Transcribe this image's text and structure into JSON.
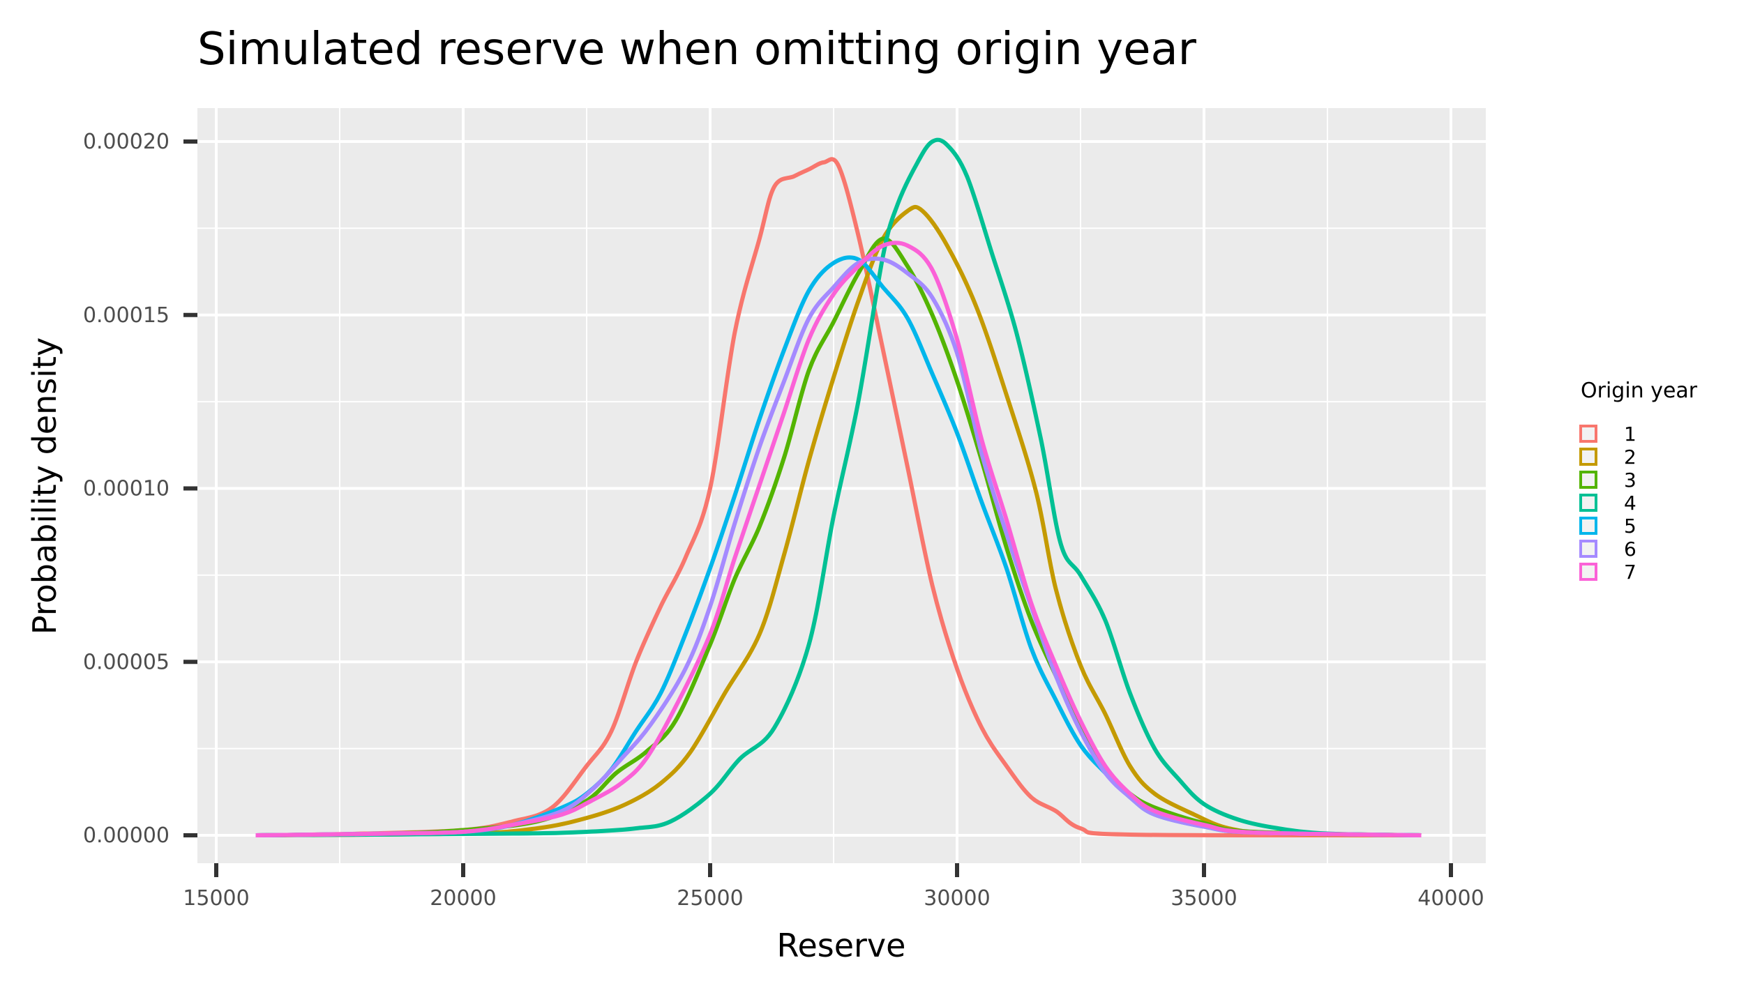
{
  "chart_data": {
    "type": "line",
    "title": "Simulated reserve when omitting origin year",
    "xlabel": "Reserve",
    "ylabel": "Probability density",
    "xlim": [
      15000,
      40000
    ],
    "ylim": [
      0,
      0.0002
    ],
    "x_ticks": [
      {
        "value": 15000,
        "label": "15000"
      },
      {
        "value": 20000,
        "label": "20000"
      },
      {
        "value": 25000,
        "label": "25000"
      },
      {
        "value": 30000,
        "label": "30000"
      },
      {
        "value": 35000,
        "label": "35000"
      },
      {
        "value": 40000,
        "label": "40000"
      }
    ],
    "y_ticks": [
      {
        "value": 0,
        "label": "0.00000"
      },
      {
        "value": 5e-05,
        "label": "0.00005"
      },
      {
        "value": 0.0001,
        "label": "0.00010"
      },
      {
        "value": 0.00015,
        "label": "0.00015"
      },
      {
        "value": 0.0002,
        "label": "0.00020"
      }
    ],
    "grid": true,
    "legend": {
      "title": "Origin year",
      "position": "right"
    },
    "series": [
      {
        "name": "1",
        "color": "#F8766D",
        "points": [
          [
            15800,
            0
          ],
          [
            18000,
            5e-07
          ],
          [
            20000,
            1.5e-06
          ],
          [
            21000,
            4e-06
          ],
          [
            21800,
            8e-06
          ],
          [
            22500,
            2e-05
          ],
          [
            23000,
            3e-05
          ],
          [
            23500,
            5e-05
          ],
          [
            24000,
            6.6e-05
          ],
          [
            24500,
            8e-05
          ],
          [
            25000,
            0.0001
          ],
          [
            25500,
            0.000145
          ],
          [
            26000,
            0.000172
          ],
          [
            26300,
            0.000187
          ],
          [
            26700,
            0.00019
          ],
          [
            27000,
            0.000192
          ],
          [
            27300,
            0.000194
          ],
          [
            27600,
            0.000193
          ],
          [
            28000,
            0.000173
          ],
          [
            28500,
            0.00014
          ],
          [
            29000,
            0.000106
          ],
          [
            29500,
            7.2e-05
          ],
          [
            30000,
            4.8e-05
          ],
          [
            30500,
            3.1e-05
          ],
          [
            31000,
            2e-05
          ],
          [
            31500,
            1.1e-05
          ],
          [
            32000,
            7e-06
          ],
          [
            32500,
            2e-06
          ],
          [
            33500,
            2e-07
          ],
          [
            39400,
            0
          ]
        ]
      },
      {
        "name": "2",
        "color": "#C49A00",
        "points": [
          [
            15800,
            0
          ],
          [
            20000,
            5e-07
          ],
          [
            21500,
            2e-06
          ],
          [
            22500,
            5e-06
          ],
          [
            23300,
            9e-06
          ],
          [
            24000,
            1.5e-05
          ],
          [
            24600,
            2.4e-05
          ],
          [
            25300,
            4.1e-05
          ],
          [
            26000,
            5.8e-05
          ],
          [
            26500,
            8.1e-05
          ],
          [
            27000,
            0.000108
          ],
          [
            27500,
            0.000132
          ],
          [
            28000,
            0.000154
          ],
          [
            28500,
            0.000172
          ],
          [
            29000,
            0.00018
          ],
          [
            29300,
            0.00018
          ],
          [
            29800,
            0.00017
          ],
          [
            30400,
            0.000152
          ],
          [
            31000,
            0.000127
          ],
          [
            31600,
            9.9e-05
          ],
          [
            32000,
            7.1e-05
          ],
          [
            32500,
            4.9e-05
          ],
          [
            33000,
            3.5e-05
          ],
          [
            33500,
            2e-05
          ],
          [
            34000,
            1.2e-05
          ],
          [
            34800,
            6e-06
          ],
          [
            35500,
            2e-06
          ],
          [
            36500,
            5e-07
          ],
          [
            39400,
            0
          ]
        ]
      },
      {
        "name": "3",
        "color": "#53B400",
        "points": [
          [
            15800,
            0
          ],
          [
            18500,
            5e-07
          ],
          [
            20000,
            1.5e-06
          ],
          [
            21500,
            4e-06
          ],
          [
            22500,
            1e-05
          ],
          [
            23100,
            1.8e-05
          ],
          [
            23700,
            2.4e-05
          ],
          [
            24300,
            3.3e-05
          ],
          [
            25000,
            5.5e-05
          ],
          [
            25500,
            7.4e-05
          ],
          [
            26000,
            8.9e-05
          ],
          [
            26500,
            0.000109
          ],
          [
            27000,
            0.000134
          ],
          [
            27500,
            0.000148
          ],
          [
            28000,
            0.000162
          ],
          [
            28500,
            0.000172
          ],
          [
            29000,
            0.000164
          ],
          [
            29500,
            0.00015
          ],
          [
            30000,
            0.000131
          ],
          [
            30500,
            0.000108
          ],
          [
            31000,
            8.3e-05
          ],
          [
            31500,
            6.2e-05
          ],
          [
            32000,
            4.6e-05
          ],
          [
            32500,
            3.1e-05
          ],
          [
            33000,
            1.9e-05
          ],
          [
            33500,
            1.2e-05
          ],
          [
            34000,
            8e-06
          ],
          [
            35000,
            3.5e-06
          ],
          [
            36000,
            1e-06
          ],
          [
            39400,
            0
          ]
        ]
      },
      {
        "name": "4",
        "color": "#00C094",
        "points": [
          [
            15800,
            0
          ],
          [
            21000,
            5e-07
          ],
          [
            22500,
            1e-06
          ],
          [
            23500,
            2e-06
          ],
          [
            24200,
            4e-06
          ],
          [
            25000,
            1.2e-05
          ],
          [
            25600,
            2.2e-05
          ],
          [
            26300,
            3.1e-05
          ],
          [
            27000,
            5.5e-05
          ],
          [
            27500,
            9.2e-05
          ],
          [
            28000,
            0.000125
          ],
          [
            28500,
            0.000167
          ],
          [
            28800,
            0.000182
          ],
          [
            29200,
            0.000194
          ],
          [
            29500,
            0.0002
          ],
          [
            29800,
            0.000199
          ],
          [
            30200,
            0.00019
          ],
          [
            30700,
            0.000168
          ],
          [
            31200,
            0.000145
          ],
          [
            31700,
            0.000114
          ],
          [
            32100,
            8.4e-05
          ],
          [
            32500,
            7.5e-05
          ],
          [
            33000,
            6.2e-05
          ],
          [
            33500,
            4.1e-05
          ],
          [
            34000,
            2.5e-05
          ],
          [
            34500,
            1.6e-05
          ],
          [
            35000,
            9e-06
          ],
          [
            35700,
            4.5e-06
          ],
          [
            36500,
            2e-06
          ],
          [
            37500,
            5e-07
          ],
          [
            39400,
            0
          ]
        ]
      },
      {
        "name": "5",
        "color": "#00B6EB",
        "points": [
          [
            15800,
            0
          ],
          [
            18500,
            5e-07
          ],
          [
            20000,
            1e-06
          ],
          [
            21000,
            3e-06
          ],
          [
            22000,
            8e-06
          ],
          [
            22500,
            1.2e-05
          ],
          [
            23000,
            1.9e-05
          ],
          [
            23500,
            3e-05
          ],
          [
            24000,
            4.1e-05
          ],
          [
            24500,
            5.8e-05
          ],
          [
            25000,
            7.7e-05
          ],
          [
            25500,
            9.8e-05
          ],
          [
            26000,
            0.00012
          ],
          [
            26500,
            0.00014
          ],
          [
            27000,
            0.000157
          ],
          [
            27500,
            0.000165
          ],
          [
            28000,
            0.000166
          ],
          [
            28500,
            0.000158
          ],
          [
            29000,
            0.000149
          ],
          [
            29500,
            0.000133
          ],
          [
            30000,
            0.000116
          ],
          [
            30500,
            9.6e-05
          ],
          [
            31000,
            7.7e-05
          ],
          [
            31500,
            5.4e-05
          ],
          [
            32000,
            3.9e-05
          ],
          [
            32500,
            2.6e-05
          ],
          [
            33000,
            1.8e-05
          ],
          [
            33500,
            1.1e-05
          ],
          [
            34000,
            6e-06
          ],
          [
            35000,
            2.5e-06
          ],
          [
            36000,
            8e-07
          ],
          [
            39400,
            0
          ]
        ]
      },
      {
        "name": "6",
        "color": "#A58AFF",
        "points": [
          [
            15800,
            0
          ],
          [
            18500,
            5e-07
          ],
          [
            20000,
            1e-06
          ],
          [
            21000,
            3e-06
          ],
          [
            22000,
            7e-06
          ],
          [
            22600,
            1.3e-05
          ],
          [
            23200,
            2.2e-05
          ],
          [
            23800,
            3.2e-05
          ],
          [
            24500,
            4.8e-05
          ],
          [
            25000,
            6.6e-05
          ],
          [
            25500,
            9e-05
          ],
          [
            26000,
            0.000112
          ],
          [
            26500,
            0.000131
          ],
          [
            27000,
            0.000149
          ],
          [
            27500,
            0.000158
          ],
          [
            28000,
            0.000165
          ],
          [
            28500,
            0.000166
          ],
          [
            29000,
            0.000162
          ],
          [
            29500,
            0.000155
          ],
          [
            30000,
            0.000139
          ],
          [
            30500,
            0.00011
          ],
          [
            31000,
            8.7e-05
          ],
          [
            31500,
            6.6e-05
          ],
          [
            32000,
            4.6e-05
          ],
          [
            32500,
            3e-05
          ],
          [
            33000,
            1.8e-05
          ],
          [
            33500,
            1.1e-05
          ],
          [
            34000,
            6e-06
          ],
          [
            35000,
            2.5e-06
          ],
          [
            36000,
            8e-07
          ],
          [
            39400,
            0
          ]
        ]
      },
      {
        "name": "7",
        "color": "#FB61D7",
        "points": [
          [
            15800,
            0
          ],
          [
            18500,
            5e-07
          ],
          [
            20000,
            1e-06
          ],
          [
            21000,
            3e-06
          ],
          [
            22000,
            6e-06
          ],
          [
            22600,
            1e-05
          ],
          [
            23200,
            1.5e-05
          ],
          [
            23700,
            2.2e-05
          ],
          [
            24300,
            3.7e-05
          ],
          [
            25000,
            5.8e-05
          ],
          [
            25500,
            8e-05
          ],
          [
            26000,
            0.000101
          ],
          [
            26500,
            0.000122
          ],
          [
            27000,
            0.000143
          ],
          [
            27500,
            0.000156
          ],
          [
            28000,
            0.000164
          ],
          [
            28500,
            0.00017
          ],
          [
            29000,
            0.00017
          ],
          [
            29500,
            0.000163
          ],
          [
            30000,
            0.000143
          ],
          [
            30500,
            0.000114
          ],
          [
            31000,
            9.1e-05
          ],
          [
            31500,
            6.7e-05
          ],
          [
            32000,
            4.9e-05
          ],
          [
            32500,
            3.3e-05
          ],
          [
            33000,
            2e-05
          ],
          [
            33500,
            1.2e-05
          ],
          [
            34000,
            7e-06
          ],
          [
            35000,
            3e-06
          ],
          [
            36000,
            8e-07
          ],
          [
            39400,
            0
          ]
        ]
      }
    ]
  }
}
